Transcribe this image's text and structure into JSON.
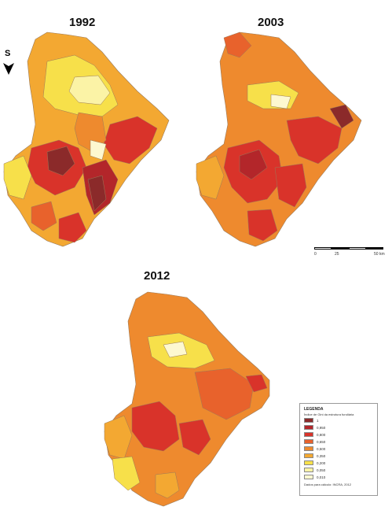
{
  "years": {
    "map1": "1992",
    "map2": "2003",
    "map3": "2012"
  },
  "north_arrow": {
    "label": "S",
    "icon": "north-arrow-icon"
  },
  "scale_bar": {
    "labels": [
      "0",
      "25",
      "50 km"
    ]
  },
  "legend": {
    "title": "LEGENDA",
    "subtitle": "Índice de Gini da estrutura fundiária",
    "classes": [
      {
        "label": "1",
        "color": "#8b2a2a"
      },
      {
        "label": "0,950",
        "color": "#b3262a"
      },
      {
        "label": "0,800",
        "color": "#d9332a"
      },
      {
        "label": "0,650",
        "color": "#e8622c"
      },
      {
        "label": "0,500",
        "color": "#ee8a2e"
      },
      {
        "label": "0,350",
        "color": "#f3a832"
      },
      {
        "label": "0,200",
        "color": "#f7e04a"
      },
      {
        "label": "0,050",
        "color": "#fbf3a6"
      },
      {
        "label": "0,010",
        "color": "#fdf8d0"
      }
    ],
    "source": "Dados para cálculo: INCRA, 2012"
  }
}
